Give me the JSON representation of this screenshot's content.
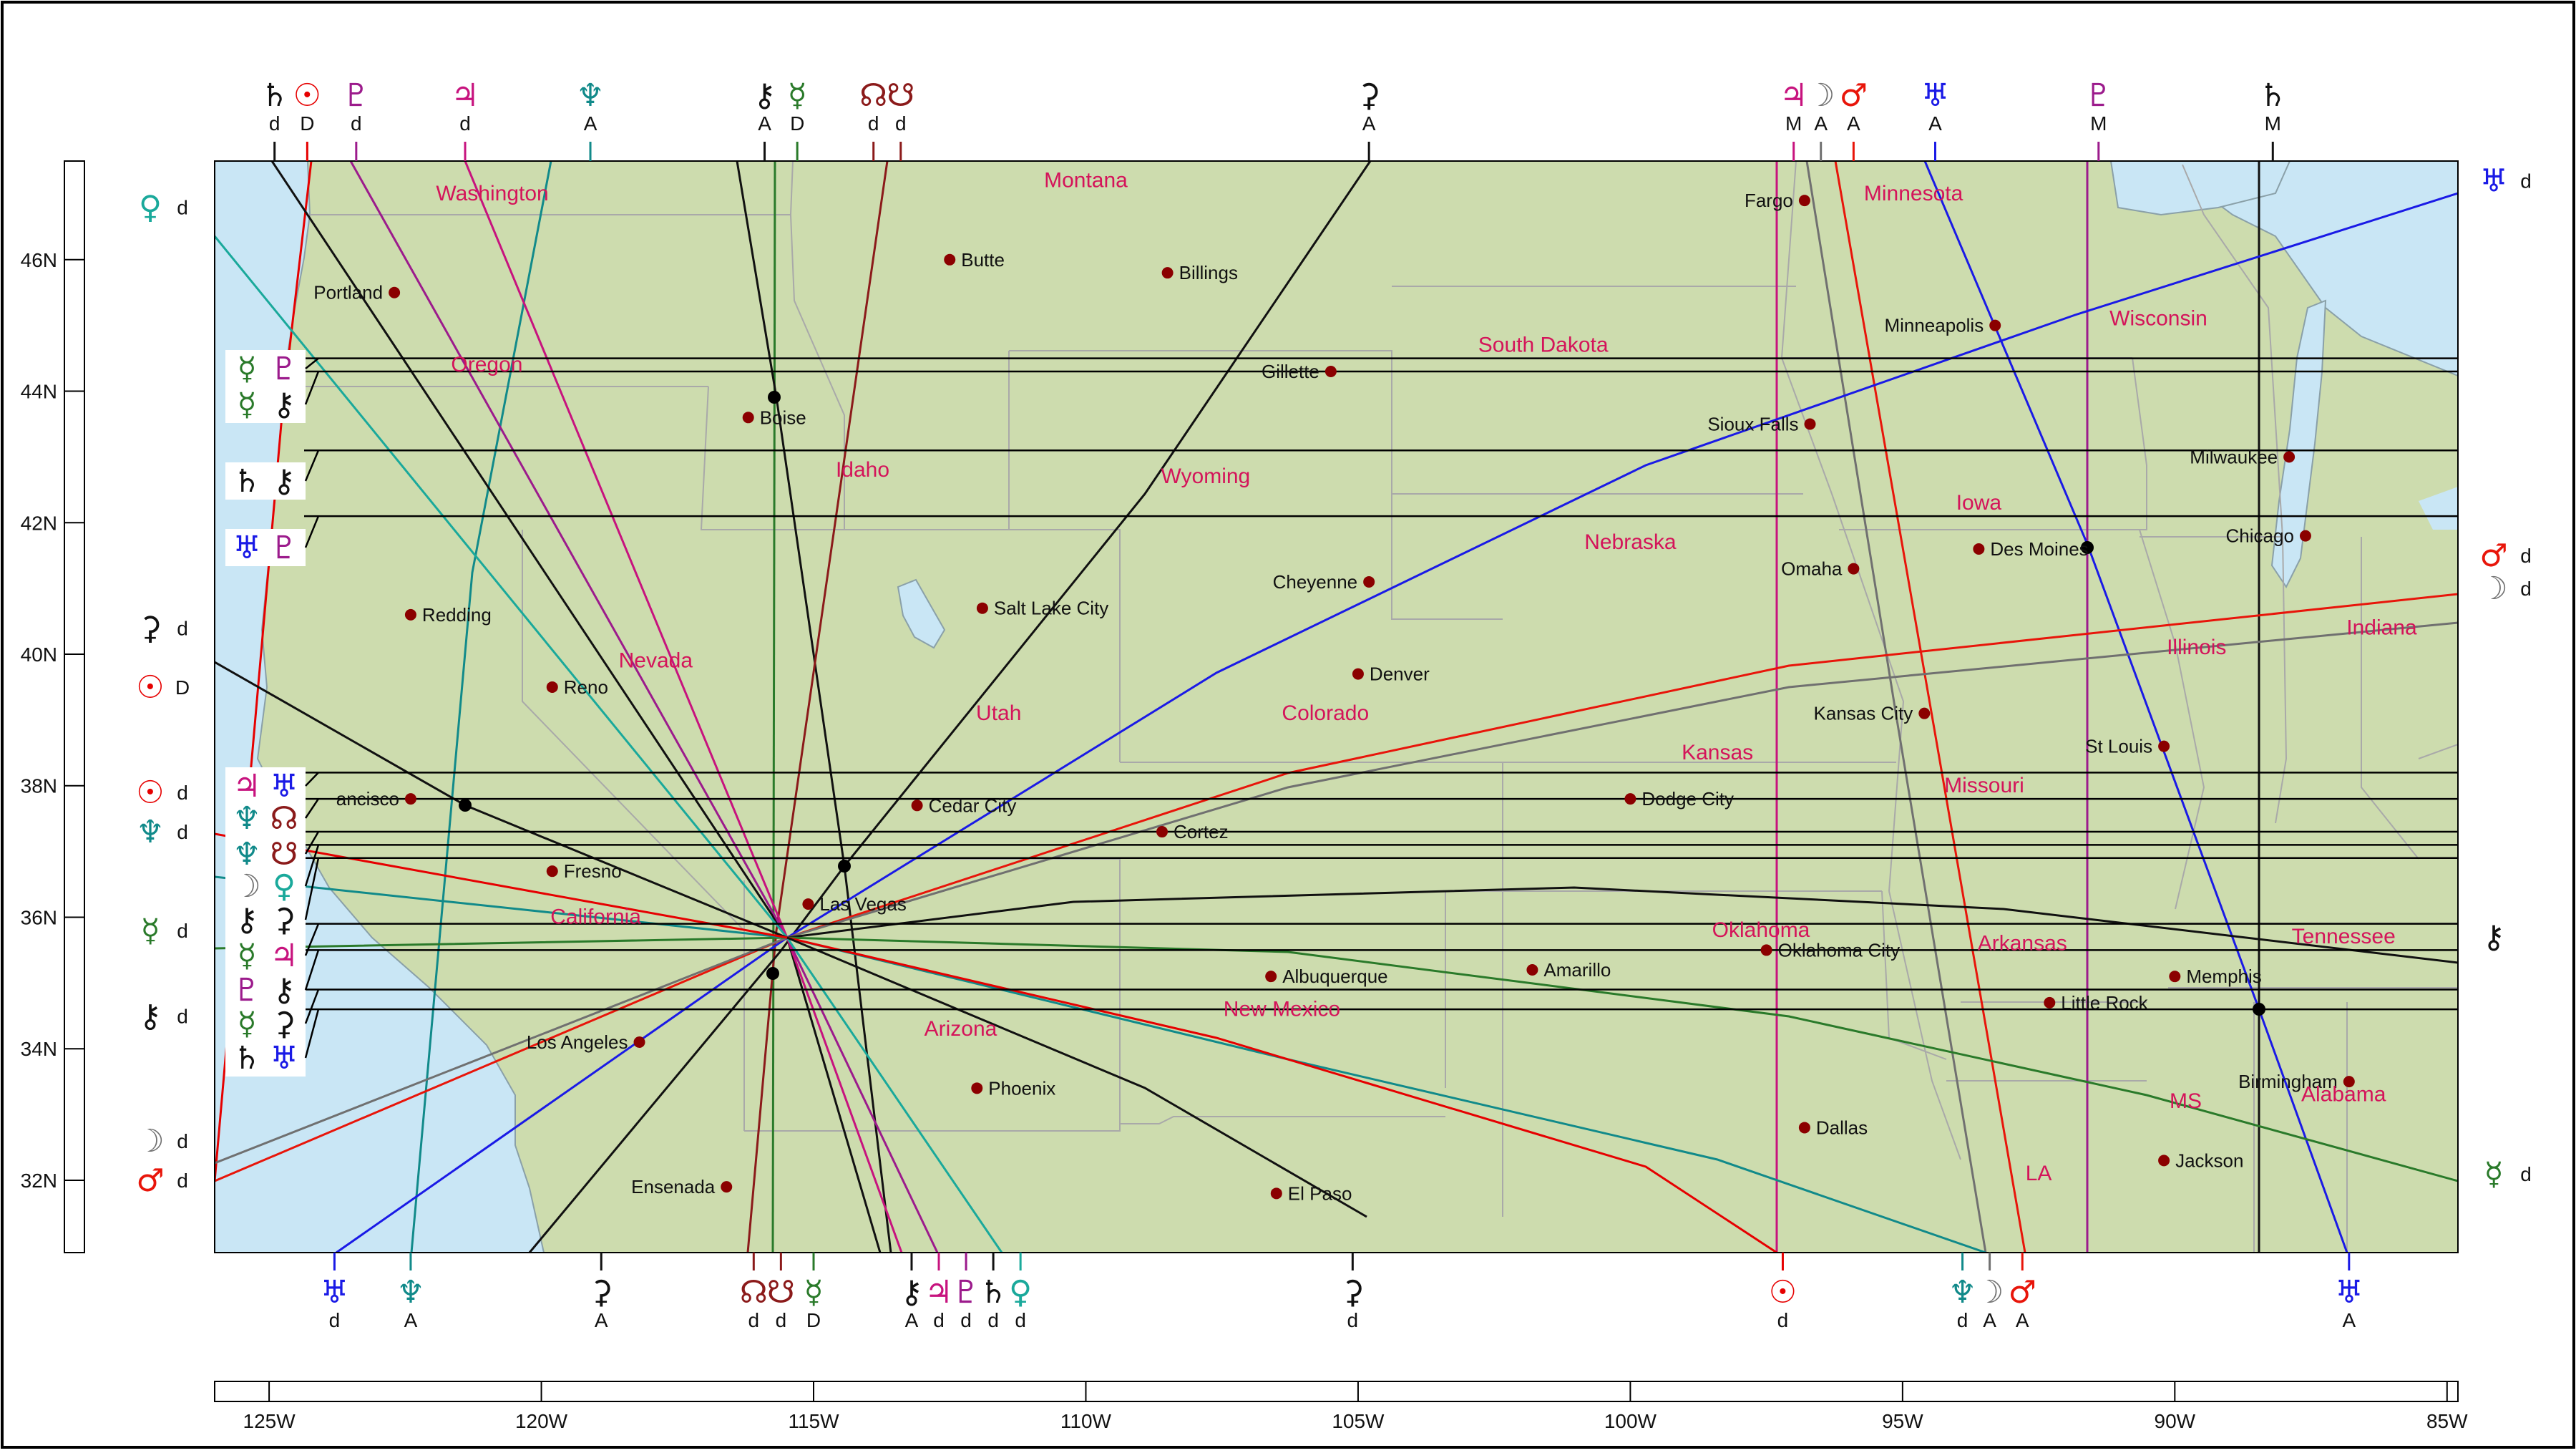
{
  "map": {
    "lon_min": -126,
    "lon_max": -84.8,
    "lat_min": 30.9,
    "lat_max": 47.5,
    "colors": {
      "water": "#c9e6f5",
      "land": "#cddcae",
      "border": "#a9a9a9",
      "Sun": "#e60000",
      "Moon": "#707070",
      "Mercury": "#2a7a2a",
      "Venus": "#1aa99b",
      "Mars": "#e8150a",
      "Jupiter": "#c7137e",
      "Saturn": "#111111",
      "Uranus": "#1a1ae6",
      "Neptune": "#118a8a",
      "Pluto": "#9c1b8c",
      "Chiron": "#111111",
      "Node": "#8b1a1a",
      "Ceres": "#111111"
    }
  },
  "lat_ticks": [
    "46N",
    "44N",
    "42N",
    "40N",
    "38N",
    "36N",
    "34N",
    "32N"
  ],
  "lat_tick_values": [
    46,
    44,
    42,
    40,
    38,
    36,
    34,
    32
  ],
  "lon_ticks": [
    "125W",
    "120W",
    "115W",
    "110W",
    "105W",
    "100W",
    "95W",
    "90W",
    "85W"
  ],
  "lon_tick_values": [
    -125,
    -120,
    -115,
    -110,
    -105,
    -100,
    -95,
    -90,
    -85
  ],
  "states": [
    {
      "name": "Washington",
      "lon": -120.9,
      "lat": 46.9
    },
    {
      "name": "Montana",
      "lon": -110,
      "lat": 47.1
    },
    {
      "name": "Minnesota",
      "lon": -94.8,
      "lat": 46.9
    },
    {
      "name": "Oregon",
      "lon": -121,
      "lat": 44.3
    },
    {
      "name": "Idaho",
      "lon": -114.1,
      "lat": 42.7
    },
    {
      "name": "Wyoming",
      "lon": -107.8,
      "lat": 42.6
    },
    {
      "name": "South Dakota",
      "lon": -101.6,
      "lat": 44.6
    },
    {
      "name": "Wisconsin",
      "lon": -90.3,
      "lat": 45
    },
    {
      "name": "Iowa",
      "lon": -93.6,
      "lat": 42.2
    },
    {
      "name": "Nebraska",
      "lon": -100,
      "lat": 41.6
    },
    {
      "name": "Nevada",
      "lon": -117.9,
      "lat": 39.8
    },
    {
      "name": "Utah",
      "lon": -111.6,
      "lat": 39
    },
    {
      "name": "Colorado",
      "lon": -105.6,
      "lat": 39
    },
    {
      "name": "Illinois",
      "lon": -89.6,
      "lat": 40
    },
    {
      "name": "Indiana",
      "lon": -86.2,
      "lat": 40.3
    },
    {
      "name": "Kansas",
      "lon": -98.4,
      "lat": 38.4
    },
    {
      "name": "Missouri",
      "lon": -93.5,
      "lat": 37.9
    },
    {
      "name": "California",
      "lon": -119,
      "lat": 35.9
    },
    {
      "name": "Oklahoma",
      "lon": -97.6,
      "lat": 35.7
    },
    {
      "name": "Arkansas",
      "lon": -92.8,
      "lat": 35.5
    },
    {
      "name": "Tennessee",
      "lon": -86.9,
      "lat": 35.6
    },
    {
      "name": "Arizona",
      "lon": -112.3,
      "lat": 34.2
    },
    {
      "name": "New Mexico",
      "lon": -106.4,
      "lat": 34.5
    },
    {
      "name": "MS",
      "lon": -89.8,
      "lat": 33.1
    },
    {
      "name": "Alabama",
      "lon": -86.9,
      "lat": 33.2
    },
    {
      "name": "LA",
      "lon": -92.5,
      "lat": 32.0
    }
  ],
  "cities": [
    {
      "name": "Fargo",
      "lon": -96.8,
      "lat": 46.9,
      "side": "left"
    },
    {
      "name": "Butte",
      "lon": -112.5,
      "lat": 46,
      "side": "right"
    },
    {
      "name": "Billings",
      "lon": -108.5,
      "lat": 45.8,
      "side": "right"
    },
    {
      "name": "Portland",
      "lon": -122.7,
      "lat": 45.5,
      "side": "left"
    },
    {
      "name": "Minneapolis",
      "lon": -93.3,
      "lat": 45,
      "side": "left"
    },
    {
      "name": "Gillette",
      "lon": -105.5,
      "lat": 44.3,
      "side": "left"
    },
    {
      "name": "Boise",
      "lon": -116.2,
      "lat": 43.6,
      "side": "right"
    },
    {
      "name": "Sioux Falls",
      "lon": -96.7,
      "lat": 43.5,
      "side": "left"
    },
    {
      "name": "Milwaukee",
      "lon": -87.9,
      "lat": 43,
      "side": "left"
    },
    {
      "name": "Des Moines",
      "lon": -93.6,
      "lat": 41.6,
      "side": "right"
    },
    {
      "name": "Chicago",
      "lon": -87.6,
      "lat": 41.8,
      "side": "left"
    },
    {
      "name": "Omaha",
      "lon": -95.9,
      "lat": 41.3,
      "side": "left"
    },
    {
      "name": "Cheyenne",
      "lon": -104.8,
      "lat": 41.1,
      "side": "left"
    },
    {
      "name": "Salt Lake City",
      "lon": -111.9,
      "lat": 40.7,
      "side": "right"
    },
    {
      "name": "Redding",
      "lon": -122.4,
      "lat": 40.6,
      "side": "right"
    },
    {
      "name": "Denver",
      "lon": -105,
      "lat": 39.7,
      "side": "right"
    },
    {
      "name": "Reno",
      "lon": -119.8,
      "lat": 39.5,
      "side": "right"
    },
    {
      "name": "Kansas City",
      "lon": -94.6,
      "lat": 39.1,
      "side": "left"
    },
    {
      "name": "St Louis",
      "lon": -90.2,
      "lat": 38.6,
      "side": "left"
    },
    {
      "name": "ancisco",
      "lon": -122.4,
      "lat": 37.8,
      "side": "left"
    },
    {
      "name": "Dodge City",
      "lon": -100,
      "lat": 37.8,
      "side": "right"
    },
    {
      "name": "Cedar City",
      "lon": -113.1,
      "lat": 37.7,
      "side": "right"
    },
    {
      "name": "Cortez",
      "lon": -108.6,
      "lat": 37.3,
      "side": "right"
    },
    {
      "name": "Fresno",
      "lon": -119.8,
      "lat": 36.7,
      "side": "right"
    },
    {
      "name": "Las Vegas",
      "lon": -115.1,
      "lat": 36.2,
      "side": "right"
    },
    {
      "name": "Amarillo",
      "lon": -101.8,
      "lat": 35.2,
      "side": "right"
    },
    {
      "name": "Oklahoma City",
      "lon": -97.5,
      "lat": 35.5,
      "side": "right"
    },
    {
      "name": "Albuquerque",
      "lon": -106.6,
      "lat": 35.1,
      "side": "right"
    },
    {
      "name": "Memphis",
      "lon": -90,
      "lat": 35.1,
      "side": "right"
    },
    {
      "name": "Little Rock",
      "lon": -92.3,
      "lat": 34.7,
      "side": "right"
    },
    {
      "name": "Los Angeles",
      "lon": -118.2,
      "lat": 34.1,
      "side": "left"
    },
    {
      "name": "Phoenix",
      "lon": -112,
      "lat": 33.4,
      "side": "right"
    },
    {
      "name": "Birmingham",
      "lon": -86.8,
      "lat": 33.5,
      "side": "left"
    },
    {
      "name": "Dallas",
      "lon": -96.8,
      "lat": 32.8,
      "side": "right"
    },
    {
      "name": "Jackson",
      "lon": -90.2,
      "lat": 32.3,
      "side": "right"
    },
    {
      "name": "Ensenada",
      "lon": -116.6,
      "lat": 31.9,
      "side": "left"
    },
    {
      "name": "El Paso",
      "lon": -106.5,
      "lat": 31.8,
      "side": "right"
    }
  ],
  "top_labels": [
    {
      "glyph": "♄",
      "sub": "d",
      "lon": -124.9,
      "color": "Saturn"
    },
    {
      "glyph": "☉",
      "sub": "D",
      "lon": -124.3,
      "color": "Sun"
    },
    {
      "glyph": "♇",
      "sub": "d",
      "lon": -123.4,
      "color": "Pluto"
    },
    {
      "glyph": "♃",
      "sub": "d",
      "lon": -121.4,
      "color": "Jupiter"
    },
    {
      "glyph": "♆",
      "sub": "A",
      "lon": -119.1,
      "color": "Neptune"
    },
    {
      "glyph": "⚷",
      "sub": "A",
      "lon": -115.9,
      "color": "Chiron"
    },
    {
      "glyph": "☿",
      "sub": "D",
      "lon": -115.3,
      "color": "Mercury"
    },
    {
      "glyph": "☊",
      "sub": "d",
      "lon": -113.9,
      "color": "Node"
    },
    {
      "glyph": "☋",
      "sub": "d",
      "lon": -113.4,
      "color": "Node"
    },
    {
      "glyph": "⚳",
      "sub": "A",
      "lon": -104.8,
      "color": "Ceres"
    },
    {
      "glyph": "♃",
      "sub": "M",
      "lon": -97,
      "color": "Jupiter"
    },
    {
      "glyph": "☽",
      "sub": "A",
      "lon": -96.5,
      "color": "Moon"
    },
    {
      "glyph": "♂",
      "sub": "A",
      "lon": -95.9,
      "color": "Mars"
    },
    {
      "glyph": "♅",
      "sub": "A",
      "lon": -94.4,
      "color": "Uranus"
    },
    {
      "glyph": "♇",
      "sub": "M",
      "lon": -91.4,
      "color": "Pluto"
    },
    {
      "glyph": "♄",
      "sub": "M",
      "lon": -88.2,
      "color": "Saturn"
    }
  ],
  "bottom_labels": [
    {
      "glyph": "♅",
      "sub": "d",
      "lon": -123.8,
      "color": "Uranus"
    },
    {
      "glyph": "♆",
      "sub": "A",
      "lon": -122.4,
      "color": "Neptune"
    },
    {
      "glyph": "⚳",
      "sub": "A",
      "lon": -118.9,
      "color": "Ceres"
    },
    {
      "glyph": "☊",
      "sub": "d",
      "lon": -116.1,
      "color": "Node"
    },
    {
      "glyph": "☋",
      "sub": "d",
      "lon": -115.6,
      "color": "Node"
    },
    {
      "glyph": "☿",
      "sub": "D",
      "lon": -115,
      "color": "Mercury"
    },
    {
      "glyph": "⚷",
      "sub": "A",
      "lon": -113.2,
      "color": "Chiron"
    },
    {
      "glyph": "♃",
      "sub": "d",
      "lon": -112.7,
      "color": "Jupiter"
    },
    {
      "glyph": "♇",
      "sub": "d",
      "lon": -112.2,
      "color": "Pluto"
    },
    {
      "glyph": "♄",
      "sub": "d",
      "lon": -111.7,
      "color": "Saturn"
    },
    {
      "glyph": "♀",
      "sub": "d",
      "lon": -111.2,
      "color": "Venus"
    },
    {
      "glyph": "⚳",
      "sub": "d",
      "lon": -105.1,
      "color": "Ceres"
    },
    {
      "glyph": "☉",
      "sub": "d",
      "lon": -97.2,
      "color": "Sun"
    },
    {
      "glyph": "♆",
      "sub": "d",
      "lon": -93.9,
      "color": "Neptune"
    },
    {
      "glyph": "☽",
      "sub": "A",
      "lon": -93.4,
      "color": "Moon"
    },
    {
      "glyph": "♂",
      "sub": "A",
      "lon": -92.8,
      "color": "Mars"
    },
    {
      "glyph": "♅",
      "sub": "A",
      "lon": -86.8,
      "color": "Uranus"
    }
  ],
  "left_labels": [
    {
      "glyph": "♀",
      "sub": "d",
      "lat": 46.8,
      "color": "Venus"
    },
    {
      "glyph": "⚳",
      "sub": "d",
      "lat": 40.4,
      "color": "Ceres"
    },
    {
      "glyph": "☉",
      "sub": "D",
      "lat": 39.5,
      "color": "Sun"
    },
    {
      "glyph": "☉",
      "sub": "d",
      "lat": 37.9,
      "color": "Sun"
    },
    {
      "glyph": "♆",
      "sub": "d",
      "lat": 37.3,
      "color": "Neptune"
    },
    {
      "glyph": "☿",
      "sub": "d",
      "lat": 35.8,
      "color": "Mercury"
    },
    {
      "glyph": "⚷",
      "sub": "d",
      "lat": 34.5,
      "color": "Chiron"
    },
    {
      "glyph": "☽",
      "sub": "d",
      "lat": 32.6,
      "color": "Moon"
    },
    {
      "glyph": "♂",
      "sub": "d",
      "lat": 32,
      "color": "Mars"
    }
  ],
  "right_labels": [
    {
      "glyph": "♅",
      "sub": "d",
      "lat": 47.2,
      "color": "Uranus"
    },
    {
      "glyph": "♂",
      "sub": "d",
      "lat": 41.5,
      "color": "Mars"
    },
    {
      "glyph": "☽",
      "sub": "d",
      "lat": 41,
      "color": "Moon"
    },
    {
      "glyph": "⚷",
      "sub": "",
      "lat": 35.7,
      "color": "Chiron"
    },
    {
      "glyph": "☿",
      "sub": "d",
      "lat": 32.1,
      "color": "Mercury"
    }
  ],
  "parans": [
    {
      "g1": "☿",
      "c1": "Mercury",
      "g2": "♇",
      "c2": "Pluto",
      "lat": 44.5
    },
    {
      "g1": "☿",
      "c1": "Mercury",
      "g2": "⚷",
      "c2": "Chiron",
      "lat": 44.3
    },
    {
      "g1": "♄",
      "c1": "Saturn",
      "g2": "⚷",
      "c2": "Chiron",
      "lat": 43.1
    },
    {
      "g1": "♅",
      "c1": "Uranus",
      "g2": "♇",
      "c2": "Pluto",
      "lat": 42.1
    },
    {
      "g1": "♃",
      "c1": "Jupiter",
      "g2": "♅",
      "c2": "Uranus",
      "lat": 38.2
    },
    {
      "g1": "♆",
      "c1": "Neptune",
      "g2": "☊",
      "c2": "Node",
      "lat": 37.8
    },
    {
      "g1": "♆",
      "c1": "Neptune",
      "g2": "☋",
      "c2": "Node",
      "lat": 37.3
    },
    {
      "g1": "☽",
      "c1": "Moon",
      "g2": "♀",
      "c2": "Venus",
      "lat": 37.1
    },
    {
      "g1": "⚷",
      "c1": "Chiron",
      "g2": "⚳",
      "c2": "Ceres",
      "lat": 36.9
    },
    {
      "g1": "☿",
      "c1": "Mercury",
      "g2": "♃",
      "c2": "Jupiter",
      "lat": 35.9
    },
    {
      "g1": "♇",
      "c1": "Pluto",
      "g2": "⚷",
      "c2": "Chiron",
      "lat": 35.5
    },
    {
      "g1": "☿",
      "c1": "Mercury",
      "g2": "⚳",
      "c2": "Ceres",
      "lat": 34.9
    },
    {
      "g1": "♄",
      "c1": "Saturn",
      "g2": "♅",
      "c2": "Uranus",
      "lat": 34.6
    }
  ]
}
